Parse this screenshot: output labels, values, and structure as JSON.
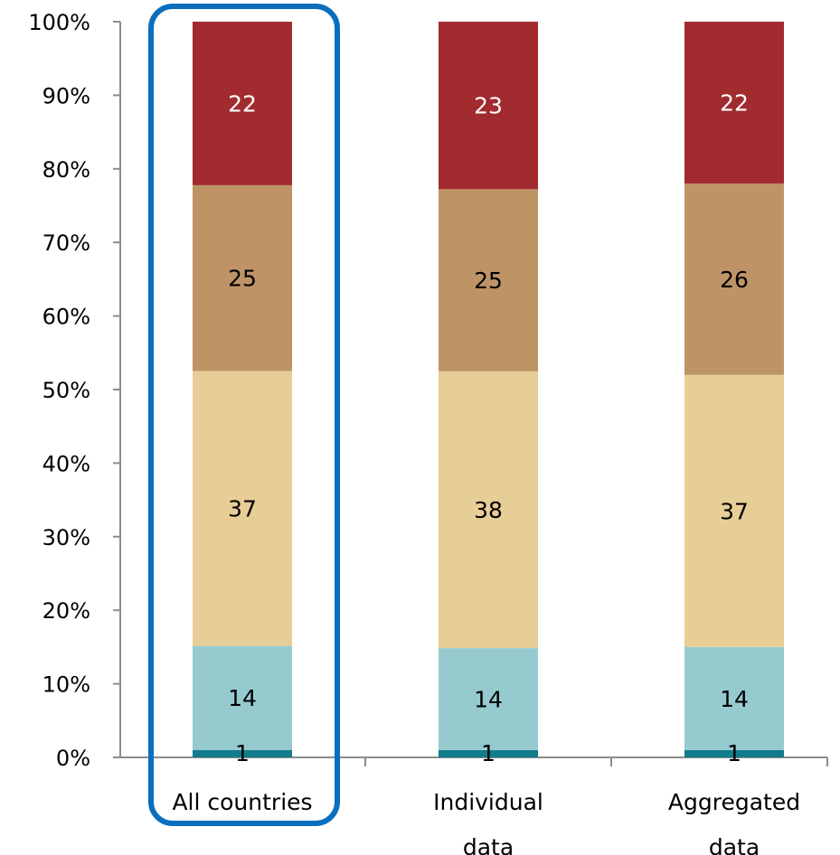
{
  "chart_data": {
    "type": "bar",
    "stacked": true,
    "percent_stacked": true,
    "categories": [
      "All countries",
      "Individual data",
      "Aggregated data"
    ],
    "category_label_lines": [
      [
        "All countries"
      ],
      [
        "Individual",
        "data"
      ],
      [
        "Aggregated",
        "data"
      ]
    ],
    "series": [
      {
        "values": [
          1,
          1,
          1
        ],
        "color": "#127C8A",
        "label_color": "#000000"
      },
      {
        "values": [
          14,
          14,
          14
        ],
        "color": "#95CBCF",
        "label_color": "#000000"
      },
      {
        "values": [
          37,
          38,
          37
        ],
        "color": "#E7CD96",
        "label_color": "#000000"
      },
      {
        "values": [
          25,
          25,
          26
        ],
        "color": "#BE9467",
        "label_color": "#000000"
      },
      {
        "values": [
          22,
          23,
          22
        ],
        "color": "#A22B2F",
        "label_color": "#FFFFFF"
      }
    ],
    "y_ticks": [
      "0%",
      "10%",
      "20%",
      "30%",
      "40%",
      "50%",
      "60%",
      "70%",
      "80%",
      "90%",
      "100%"
    ],
    "ylim": [
      0,
      100
    ],
    "grid": false,
    "legend": "none",
    "highlight": {
      "category": "All countries",
      "color": "#0A6EBD"
    }
  }
}
